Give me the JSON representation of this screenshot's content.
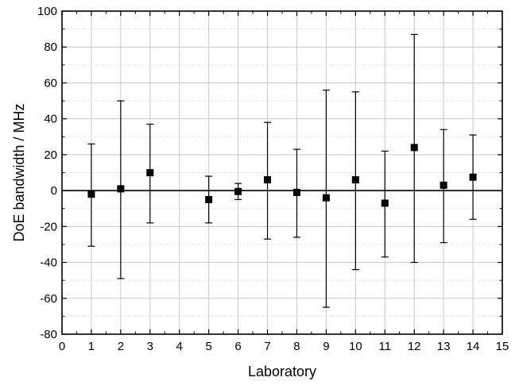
{
  "chart_data": {
    "type": "scatter",
    "xlabel": "Laboratory",
    "ylabel": "DoE bandwidth / MHz",
    "xlim": [
      0,
      15
    ],
    "ylim": [
      -80,
      100
    ],
    "x_ticks": [
      "0",
      "1",
      "2",
      "3",
      "4",
      "5",
      "6",
      "7",
      "8",
      "9",
      "10",
      "11",
      "12",
      "13",
      "14",
      "15"
    ],
    "y_ticks": [
      "-80",
      "-60",
      "-40",
      "-20",
      "0",
      "20",
      "40",
      "60",
      "80",
      "100"
    ],
    "grid": true,
    "minor_grid": true,
    "reference_line_y": 0,
    "marker": "square",
    "color": "#000000",
    "points": [
      {
        "x": 1,
        "y": -2,
        "low": -31,
        "high": 26
      },
      {
        "x": 2,
        "y": 1,
        "low": -49,
        "high": 50
      },
      {
        "x": 3,
        "y": 10,
        "low": -18,
        "high": 37
      },
      {
        "x": 5,
        "y": -5,
        "low": -18,
        "high": 8
      },
      {
        "x": 6,
        "y": -0.5,
        "low": -5,
        "high": 4
      },
      {
        "x": 7,
        "y": 6,
        "low": -27,
        "high": 38
      },
      {
        "x": 8,
        "y": -1,
        "low": -26,
        "high": 23
      },
      {
        "x": 9,
        "y": -4,
        "low": -65,
        "high": 56
      },
      {
        "x": 10,
        "y": 6,
        "low": -44,
        "high": 55
      },
      {
        "x": 11,
        "y": -7,
        "low": -37,
        "high": 22
      },
      {
        "x": 12,
        "y": 24,
        "low": -40,
        "high": 87
      },
      {
        "x": 13,
        "y": 3,
        "low": -29,
        "high": 34
      },
      {
        "x": 14,
        "y": 7.5,
        "low": -16,
        "high": 31
      }
    ]
  }
}
